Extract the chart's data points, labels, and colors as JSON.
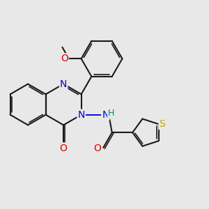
{
  "bg_color": "#e8e8e8",
  "bond_color": "#1a1a1a",
  "N_color": "#0000dd",
  "O_color": "#dd0000",
  "S_color": "#bbaa00",
  "H_color": "#008888",
  "lw": 1.5,
  "lw_inner": 1.2,
  "fs": 10,
  "dbl_off": 0.08,
  "figsize": [
    3.0,
    3.0
  ],
  "dpi": 100,
  "xlim": [
    -1.5,
    8.5
  ],
  "ylim": [
    -4.5,
    4.5
  ]
}
